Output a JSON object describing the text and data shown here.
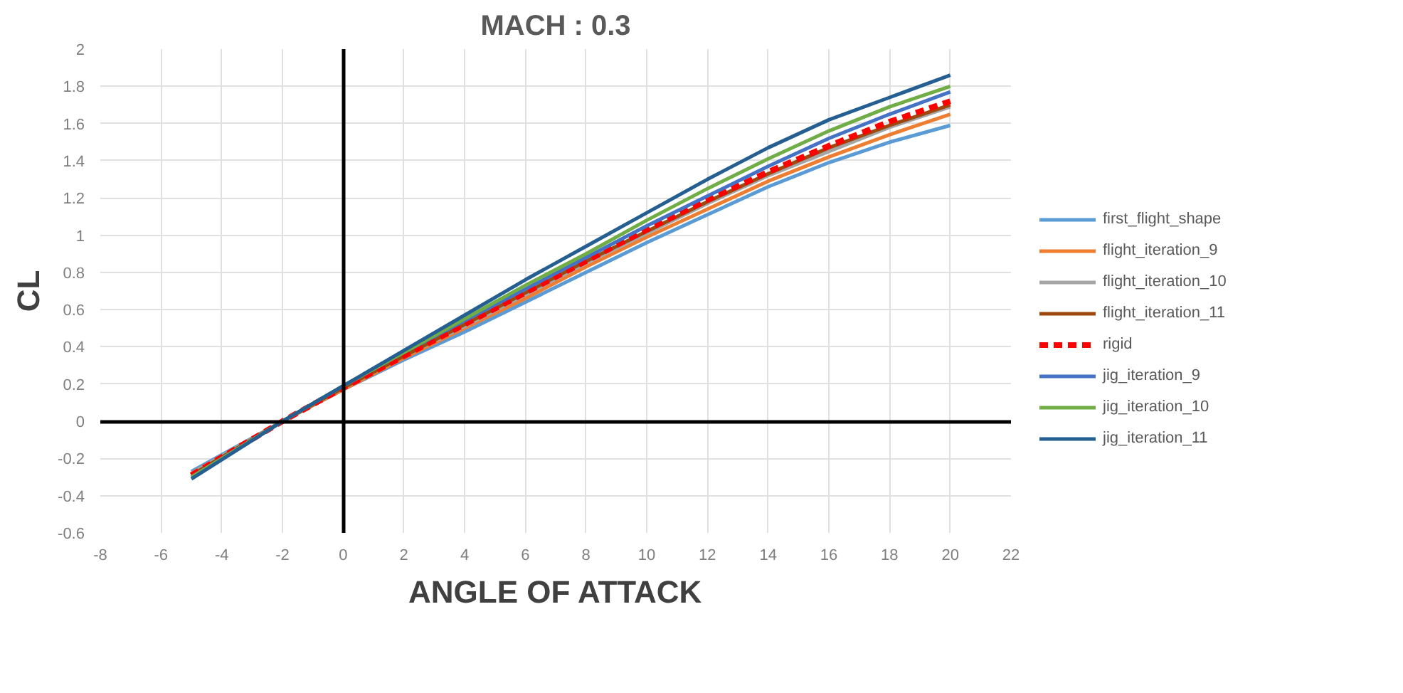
{
  "chart_data": {
    "type": "line",
    "title": "MACH : 0.3",
    "xlabel": "ANGLE OF ATTACK",
    "ylabel": "CL",
    "x": [
      -5,
      -2,
      0,
      2,
      4,
      6,
      8,
      10,
      12,
      14,
      16,
      18,
      20
    ],
    "series": [
      {
        "name": "first_flight_shape",
        "color": "#5b9bd5",
        "values": [
          -0.27,
          0.0,
          0.17,
          0.33,
          0.48,
          0.64,
          0.8,
          0.96,
          1.11,
          1.26,
          1.39,
          1.5,
          1.59
        ]
      },
      {
        "name": "flight_iteration_9",
        "color": "#ed7d31",
        "values": [
          -0.28,
          0.0,
          0.17,
          0.34,
          0.5,
          0.66,
          0.83,
          0.99,
          1.14,
          1.29,
          1.42,
          1.54,
          1.65
        ]
      },
      {
        "name": "flight_iteration_10",
        "color": "#a5a5a5",
        "values": [
          -0.28,
          0.0,
          0.18,
          0.35,
          0.51,
          0.68,
          0.85,
          1.01,
          1.17,
          1.32,
          1.45,
          1.58,
          1.69
        ]
      },
      {
        "name": "flight_iteration_11",
        "color": "#9e480e",
        "values": [
          -0.29,
          0.0,
          0.18,
          0.35,
          0.52,
          0.69,
          0.86,
          1.02,
          1.18,
          1.33,
          1.47,
          1.59,
          1.7
        ]
      },
      {
        "name": "rigid",
        "color": "#ff0000",
        "line_style": "dashed",
        "values": [
          -0.29,
          0.0,
          0.18,
          0.35,
          0.52,
          0.69,
          0.86,
          1.03,
          1.19,
          1.34,
          1.48,
          1.61,
          1.72
        ]
      },
      {
        "name": "jig_iteration_9",
        "color": "#4472c4",
        "values": [
          -0.3,
          0.0,
          0.19,
          0.37,
          0.54,
          0.71,
          0.88,
          1.05,
          1.21,
          1.37,
          1.52,
          1.65,
          1.77
        ]
      },
      {
        "name": "jig_iteration_10",
        "color": "#70ad47",
        "values": [
          -0.3,
          0.0,
          0.19,
          0.37,
          0.55,
          0.73,
          0.9,
          1.08,
          1.25,
          1.41,
          1.56,
          1.69,
          1.8
        ]
      },
      {
        "name": "jig_iteration_11",
        "color": "#255e91",
        "values": [
          -0.31,
          0.0,
          0.19,
          0.38,
          0.57,
          0.76,
          0.94,
          1.12,
          1.3,
          1.47,
          1.62,
          1.74,
          1.86
        ]
      }
    ],
    "xlim": [
      -8,
      22
    ],
    "xticks": [
      -8,
      -6,
      -4,
      -2,
      0,
      2,
      4,
      6,
      8,
      10,
      12,
      14,
      16,
      18,
      20,
      22
    ],
    "ylim": [
      -0.6,
      2
    ],
    "yticks": [
      -0.6,
      -0.4,
      -0.2,
      0,
      0.2,
      0.4,
      0.6,
      0.8,
      1,
      1.2,
      1.4,
      1.6,
      1.8,
      2
    ],
    "grid": true,
    "legend": "right",
    "marker": "none",
    "line_style": "solid"
  }
}
